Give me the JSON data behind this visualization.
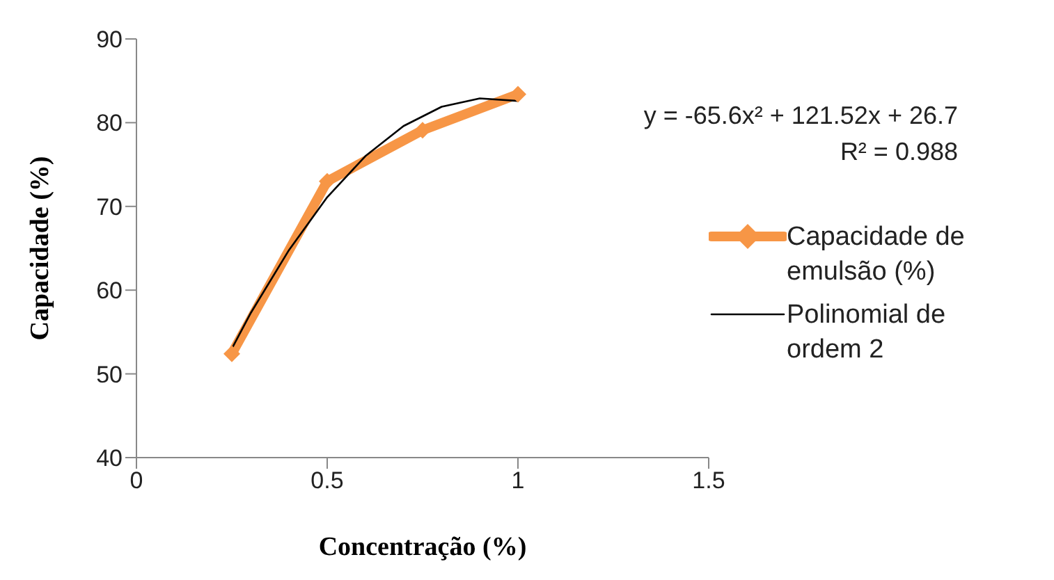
{
  "chart_data": {
    "type": "line",
    "xlabel": "Concentração (%)",
    "ylabel": "Capacidade (%)",
    "xlim": [
      0,
      1.5
    ],
    "xticks": [
      0,
      0.5,
      1,
      1.5
    ],
    "ylim": [
      40,
      90
    ],
    "yticks": [
      40,
      50,
      60,
      70,
      80,
      90
    ],
    "grid": false,
    "legend": "right",
    "marker": "diamond",
    "line_style": "solid",
    "annotations": [
      "y = -65.6x² + 121.52x + 26.7",
      "R² = 0.988"
    ],
    "series": [
      {
        "name": "Capacidade de emulsão (%)",
        "color": "#f79646",
        "x": [
          0.25,
          0.5,
          0.75,
          1
        ],
        "values": [
          52.4,
          73.0,
          79.1,
          83.4
        ]
      },
      {
        "name": "Polinomial de ordem 2",
        "type": "line",
        "marker": "none",
        "color": "#000000",
        "x": [
          0.25,
          0.3,
          0.4,
          0.5,
          0.6,
          0.7,
          0.8,
          0.9,
          1
        ],
        "values": [
          53.0,
          57.3,
          64.8,
          71.1,
          76.0,
          79.6,
          81.9,
          82.9,
          82.6
        ]
      }
    ]
  }
}
